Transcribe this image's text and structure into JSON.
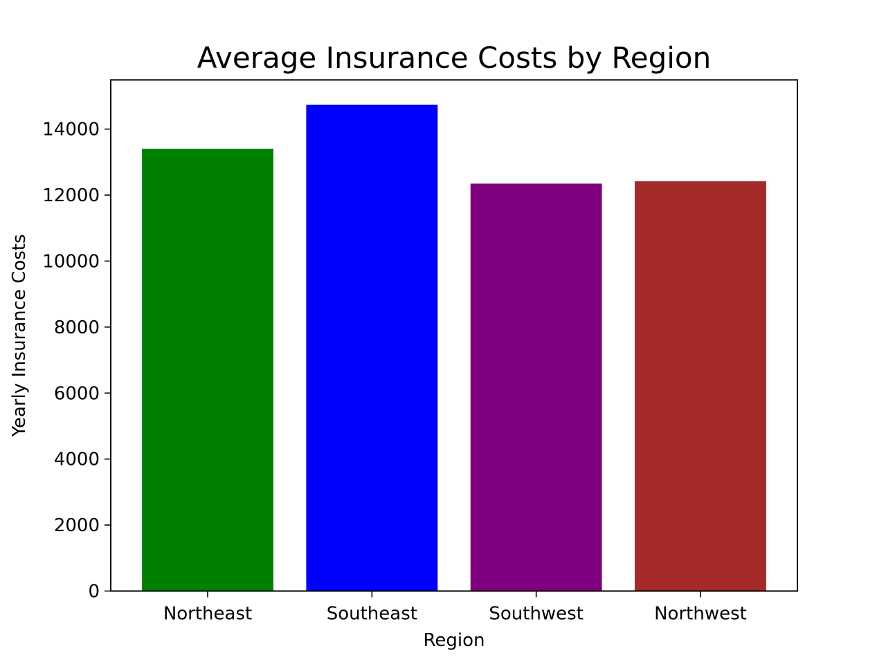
{
  "chart_data": {
    "type": "bar",
    "title": "Average Insurance Costs by Region",
    "xlabel": "Region",
    "ylabel": "Yearly Insurance Costs",
    "categories": [
      "Northeast",
      "Southeast",
      "Southwest",
      "Northwest"
    ],
    "values": [
      13406,
      14735,
      12347,
      12418
    ],
    "colors": [
      "#008000",
      "#0000ff",
      "#800080",
      "#a52a2a"
    ],
    "ylim": [
      0,
      15491
    ],
    "yticks": [
      0,
      2000,
      4000,
      6000,
      8000,
      10000,
      12000,
      14000
    ],
    "grid": false,
    "legend": "none"
  }
}
